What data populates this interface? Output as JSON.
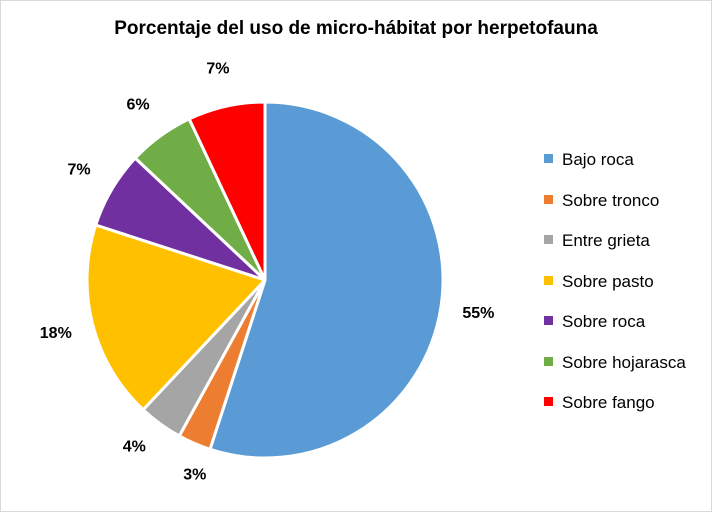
{
  "chart_data": {
    "type": "pie",
    "title": "Porcentaje del uso de micro-hábitat por herpetofauna",
    "legend_position": "right",
    "start_angle_deg": 0,
    "direction": "clockwise",
    "slices": [
      {
        "label": "Bajo roca",
        "value": 55,
        "value_label": "55%",
        "color": "#5B9BD5"
      },
      {
        "label": "Sobre tronco",
        "value": 3,
        "value_label": "3%",
        "color": "#ED7D31"
      },
      {
        "label": "Entre grieta",
        "value": 4,
        "value_label": "4%",
        "color": "#A5A5A5"
      },
      {
        "label": "Sobre pasto",
        "value": 18,
        "value_label": "18%",
        "color": "#FFC000"
      },
      {
        "label": "Sobre roca",
        "value": 7,
        "value_label": "7%",
        "color": "#7030A0"
      },
      {
        "label": "Sobre hojarasca",
        "value": 6,
        "value_label": "6%",
        "color": "#70AD47"
      },
      {
        "label": "Sobre fango",
        "value": 7,
        "value_label": "7%",
        "color": "#FF0000"
      }
    ]
  }
}
